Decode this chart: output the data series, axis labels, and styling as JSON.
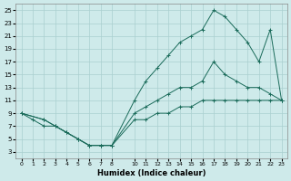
{
  "xlabel": "Humidex (Indice chaleur)",
  "background_color": "#ceeaea",
  "grid_color": "#aacfcf",
  "line_color": "#1a6b5a",
  "xlim": [
    -0.5,
    23.5
  ],
  "ylim": [
    2,
    26
  ],
  "xticks": [
    0,
    1,
    2,
    3,
    4,
    5,
    6,
    7,
    8,
    10,
    11,
    12,
    13,
    14,
    15,
    16,
    17,
    18,
    19,
    20,
    21,
    22,
    23
  ],
  "yticks": [
    3,
    5,
    7,
    9,
    11,
    13,
    15,
    17,
    19,
    21,
    23,
    25
  ],
  "line1_x": [
    0,
    1,
    2,
    3,
    4,
    5,
    6,
    7,
    8,
    10,
    11,
    12,
    13,
    14,
    15,
    16,
    17,
    18,
    19,
    20,
    21,
    22,
    23
  ],
  "line1_y": [
    9,
    8,
    7,
    7,
    6,
    5,
    4,
    4,
    4,
    8,
    8,
    9,
    9,
    10,
    10,
    11,
    11,
    11,
    11,
    11,
    11,
    11,
    11
  ],
  "line2_x": [
    0,
    2,
    3,
    4,
    5,
    6,
    7,
    8,
    10,
    11,
    12,
    13,
    14,
    15,
    16,
    17,
    18,
    19,
    20,
    21,
    22,
    23
  ],
  "line2_y": [
    9,
    8,
    7,
    6,
    5,
    4,
    4,
    4,
    11,
    14,
    16,
    18,
    20,
    21,
    22,
    25,
    24,
    22,
    20,
    17,
    22,
    11
  ],
  "line3_x": [
    0,
    2,
    3,
    4,
    5,
    6,
    7,
    8,
    10,
    11,
    12,
    13,
    14,
    15,
    16,
    17,
    18,
    19,
    20,
    21,
    22,
    23
  ],
  "line3_y": [
    9,
    8,
    7,
    6,
    5,
    4,
    4,
    4,
    9,
    10,
    11,
    12,
    13,
    13,
    14,
    17,
    15,
    14,
    13,
    13,
    12,
    11
  ]
}
